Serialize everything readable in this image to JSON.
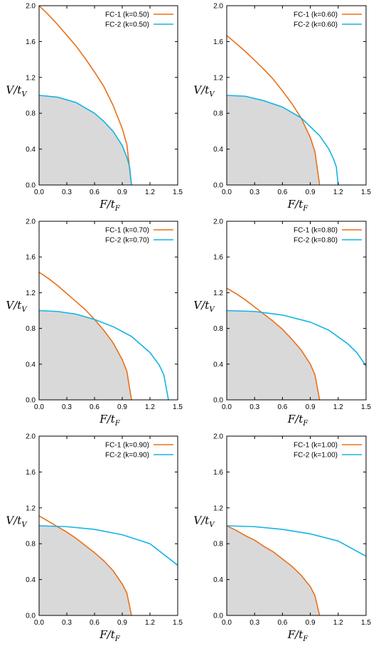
{
  "colors": {
    "fc1": "#e8701a",
    "fc2": "#13b3e6",
    "feasible": "#d9d9d9",
    "frame": "#000000"
  },
  "chart_data": [
    {
      "type": "line",
      "xlabel": "F/t_F",
      "ylabel": "V/t_V",
      "xlim": [
        0,
        1.5
      ],
      "ylim": [
        0,
        2.0
      ],
      "xticks": [
        "0.0",
        "0.3",
        "0.6",
        "0.9",
        "1.2",
        "1.5"
      ],
      "yticks": [
        "0.0",
        "0.4",
        "0.8",
        "1.2",
        "1.6",
        "2.0"
      ],
      "legend_position": "top-right",
      "series": [
        {
          "name": "FC-1 (k=0.50)",
          "color": "#e8701a",
          "x": [
            0.0,
            0.1,
            0.2,
            0.3,
            0.4,
            0.5,
            0.6,
            0.7,
            0.8,
            0.9,
            0.95,
            1.0
          ],
          "y": [
            2.0,
            1.9,
            1.79,
            1.67,
            1.55,
            1.41,
            1.26,
            1.1,
            0.89,
            0.63,
            0.45,
            0.0
          ]
        },
        {
          "name": "FC-2 (k=0.50)",
          "color": "#13b3e6",
          "x": [
            0.0,
            0.2,
            0.4,
            0.6,
            0.7,
            0.8,
            0.9,
            0.95,
            0.98,
            1.0
          ],
          "y": [
            1.0,
            0.98,
            0.92,
            0.8,
            0.71,
            0.6,
            0.44,
            0.31,
            0.2,
            0.0
          ]
        }
      ],
      "shaded_region": "feasible area under both curves"
    },
    {
      "type": "line",
      "xlabel": "F/t_F",
      "ylabel": "V/t_V",
      "xlim": [
        0,
        1.5
      ],
      "ylim": [
        0,
        2.0
      ],
      "xticks": [
        "0.0",
        "0.3",
        "0.6",
        "0.9",
        "1.2",
        "1.5"
      ],
      "yticks": [
        "0.0",
        "0.4",
        "0.8",
        "1.2",
        "1.6",
        "2.0"
      ],
      "legend_position": "top-right",
      "series": [
        {
          "name": "FC-1 (k=0.60)",
          "color": "#e8701a",
          "x": [
            0.0,
            0.1,
            0.2,
            0.3,
            0.4,
            0.5,
            0.6,
            0.7,
            0.8,
            0.9,
            0.95,
            1.0
          ],
          "y": [
            1.667,
            1.58,
            1.49,
            1.39,
            1.29,
            1.18,
            1.05,
            0.91,
            0.75,
            0.53,
            0.37,
            0.0
          ]
        },
        {
          "name": "FC-2 (k=0.60)",
          "color": "#13b3e6",
          "x": [
            0.0,
            0.2,
            0.4,
            0.6,
            0.8,
            1.0,
            1.1,
            1.15,
            1.18,
            1.2
          ],
          "y": [
            1.0,
            0.99,
            0.94,
            0.87,
            0.75,
            0.55,
            0.4,
            0.29,
            0.2,
            0.0
          ]
        }
      ],
      "shaded_region": "feasible area under both curves"
    },
    {
      "type": "line",
      "xlabel": "F/t_F",
      "ylabel": "V/t_V",
      "xlim": [
        0,
        1.5
      ],
      "ylim": [
        0,
        2.0
      ],
      "xticks": [
        "0.0",
        "0.3",
        "0.6",
        "0.9",
        "1.2",
        "1.5"
      ],
      "yticks": [
        "0.0",
        "0.4",
        "0.8",
        "1.2",
        "1.6",
        "2.0"
      ],
      "legend_position": "top-right",
      "series": [
        {
          "name": "FC-1 (k=0.70)",
          "color": "#e8701a",
          "x": [
            0.0,
            0.1,
            0.2,
            0.3,
            0.4,
            0.5,
            0.6,
            0.7,
            0.8,
            0.9,
            0.95,
            1.0
          ],
          "y": [
            1.429,
            1.36,
            1.28,
            1.19,
            1.1,
            1.01,
            0.9,
            0.78,
            0.64,
            0.45,
            0.32,
            0.0
          ]
        },
        {
          "name": "FC-2 (k=0.70)",
          "color": "#13b3e6",
          "x": [
            0.0,
            0.2,
            0.4,
            0.6,
            0.8,
            1.0,
            1.2,
            1.3,
            1.35,
            1.4
          ],
          "y": [
            1.0,
            0.99,
            0.96,
            0.9,
            0.82,
            0.71,
            0.53,
            0.39,
            0.28,
            0.0
          ]
        }
      ],
      "shaded_region": "feasible area under both curves"
    },
    {
      "type": "line",
      "xlabel": "F/t_F",
      "ylabel": "V/t_V",
      "xlim": [
        0,
        1.5
      ],
      "ylim": [
        0,
        2.0
      ],
      "xticks": [
        "0.0",
        "0.3",
        "0.6",
        "0.9",
        "1.2",
        "1.5"
      ],
      "yticks": [
        "0.0",
        "0.4",
        "0.8",
        "1.2",
        "1.6",
        "2.0"
      ],
      "legend_position": "top-right",
      "series": [
        {
          "name": "FC-1 (k=0.80)",
          "color": "#e8701a",
          "x": [
            0.0,
            0.1,
            0.2,
            0.3,
            0.4,
            0.5,
            0.6,
            0.7,
            0.8,
            0.9,
            0.95,
            1.0
          ],
          "y": [
            1.25,
            1.19,
            1.12,
            1.04,
            0.96,
            0.88,
            0.79,
            0.68,
            0.56,
            0.4,
            0.28,
            0.0
          ]
        },
        {
          "name": "FC-2 (k=0.80)",
          "color": "#13b3e6",
          "x": [
            0.0,
            0.3,
            0.6,
            0.9,
            1.1,
            1.3,
            1.4,
            1.5
          ],
          "y": [
            1.0,
            0.99,
            0.95,
            0.87,
            0.78,
            0.63,
            0.53,
            0.38
          ]
        }
      ],
      "shaded_region": "feasible area under both curves"
    },
    {
      "type": "line",
      "xlabel": "F/t_F",
      "ylabel": "V/t_V",
      "xlim": [
        0,
        1.5
      ],
      "ylim": [
        0,
        2.0
      ],
      "xticks": [
        "0.0",
        "0.3",
        "0.6",
        "0.9",
        "1.2",
        "1.5"
      ],
      "yticks": [
        "0.0",
        "0.4",
        "0.8",
        "1.2",
        "1.6",
        "2.0"
      ],
      "legend_position": "top-right",
      "series": [
        {
          "name": "FC-1 (k=0.90)",
          "color": "#e8701a",
          "x": [
            0.0,
            0.1,
            0.2,
            0.3,
            0.4,
            0.5,
            0.6,
            0.7,
            0.8,
            0.9,
            0.95,
            1.0
          ],
          "y": [
            1.111,
            1.05,
            0.99,
            0.93,
            0.86,
            0.78,
            0.7,
            0.61,
            0.5,
            0.35,
            0.25,
            0.0
          ]
        },
        {
          "name": "FC-2 (k=0.90)",
          "color": "#13b3e6",
          "x": [
            0.0,
            0.3,
            0.6,
            0.9,
            1.2,
            1.5
          ],
          "y": [
            1.0,
            0.99,
            0.96,
            0.9,
            0.8,
            0.56
          ]
        }
      ],
      "shaded_region": "feasible area under both curves"
    },
    {
      "type": "line",
      "xlabel": "F/t_F",
      "ylabel": "V/t_V",
      "xlim": [
        0,
        1.5
      ],
      "ylim": [
        0,
        2.0
      ],
      "xticks": [
        "0.0",
        "0.3",
        "0.6",
        "0.9",
        "1.2",
        "1.5"
      ],
      "yticks": [
        "0.0",
        "0.4",
        "0.8",
        "1.2",
        "1.6",
        "2.0"
      ],
      "legend_position": "top-right",
      "series": [
        {
          "name": "FC-1 (k=1.00)",
          "color": "#e8701a",
          "x": [
            0.0,
            0.1,
            0.2,
            0.3,
            0.4,
            0.5,
            0.6,
            0.7,
            0.8,
            0.9,
            0.95,
            1.0
          ],
          "y": [
            1.0,
            0.95,
            0.89,
            0.84,
            0.77,
            0.71,
            0.63,
            0.55,
            0.45,
            0.32,
            0.22,
            0.0
          ]
        },
        {
          "name": "FC-2 (k=1.00)",
          "color": "#13b3e6",
          "x": [
            0.0,
            0.3,
            0.6,
            0.9,
            1.2,
            1.5
          ],
          "y": [
            1.0,
            0.99,
            0.96,
            0.91,
            0.83,
            0.66
          ]
        }
      ],
      "shaded_region": "feasible area under both curves"
    }
  ]
}
